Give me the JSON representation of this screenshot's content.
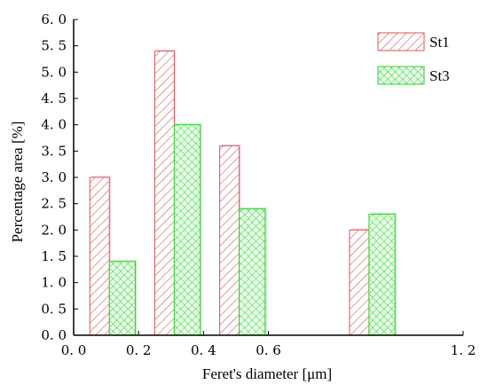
{
  "chart_data": {
    "type": "bar",
    "xlabel": "Feret's diameter [μm]",
    "ylabel": "Percentage area [%]",
    "xlim": [
      0.0,
      1.2
    ],
    "ylim": [
      0.0,
      6.0
    ],
    "x_ticks": [
      "0.0",
      "0.2",
      "0.4",
      "0.6",
      "1.2"
    ],
    "y_ticks": [
      "0.0",
      "0.5",
      "1.0",
      "1.5",
      "2.0",
      "2.5",
      "3.0",
      "3.5",
      "4.0",
      "4.5",
      "5.0",
      "5.5",
      "6.0"
    ],
    "legend_position": "top-right",
    "series": [
      {
        "name": "St1",
        "color": "#d05a5a",
        "pattern": "diagonal-hatch",
        "bars": [
          {
            "x0": 0.05,
            "x1": 0.11,
            "value": 3.0
          },
          {
            "x0": 0.25,
            "x1": 0.31,
            "value": 5.4
          },
          {
            "x0": 0.45,
            "x1": 0.51,
            "value": 3.6
          },
          {
            "x0": 0.85,
            "x1": 0.91,
            "value": 2.0
          }
        ]
      },
      {
        "name": "St3",
        "color": "#3cc83c",
        "pattern": "crosshatch",
        "bars": [
          {
            "x0": 0.11,
            "x1": 0.19,
            "value": 1.4
          },
          {
            "x0": 0.31,
            "x1": 0.39,
            "value": 4.0
          },
          {
            "x0": 0.51,
            "x1": 0.59,
            "value": 2.4
          },
          {
            "x0": 0.91,
            "x1": 0.99,
            "value": 2.3
          }
        ]
      }
    ]
  }
}
